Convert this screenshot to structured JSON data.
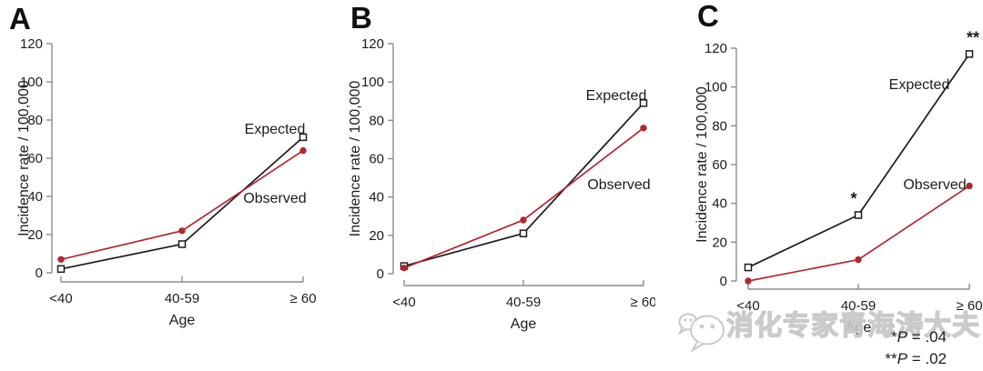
{
  "panels": [
    {
      "letter": "A"
    },
    {
      "letter": "B"
    },
    {
      "letter": "C"
    }
  ],
  "chart_data": [
    {
      "type": "line",
      "panel": "A",
      "categories": [
        "<40",
        "40-59",
        "≥ 60"
      ],
      "series": [
        {
          "name": "Expected",
          "marker": "square-open",
          "color": "#1c1c1c",
          "values": [
            2,
            15,
            71
          ]
        },
        {
          "name": "Observed",
          "marker": "circle-filled",
          "color": "#b3282c",
          "values": [
            7,
            22,
            64
          ]
        }
      ],
      "xlabel": "Age",
      "ylabel": "Incidence rate / 100,000",
      "ylim": [
        0,
        120
      ],
      "yticks": [
        0,
        20,
        40,
        60,
        80,
        100,
        120
      ],
      "grid": false,
      "legend_position": "inline-labels"
    },
    {
      "type": "line",
      "panel": "B",
      "categories": [
        "<40",
        "40-59",
        "≥ 60"
      ],
      "series": [
        {
          "name": "Expected",
          "marker": "square-open",
          "color": "#1c1c1c",
          "values": [
            4,
            21,
            89
          ]
        },
        {
          "name": "Observed",
          "marker": "circle-filled",
          "color": "#b3282c",
          "values": [
            3,
            28,
            76
          ]
        }
      ],
      "xlabel": "Age",
      "ylabel": "Incidence rate / 100,000",
      "ylim": [
        0,
        120
      ],
      "yticks": [
        0,
        20,
        40,
        60,
        80,
        100,
        120
      ],
      "grid": false,
      "legend_position": "inline-labels"
    },
    {
      "type": "line",
      "panel": "C",
      "categories": [
        "<40",
        "40-59",
        "≥ 60"
      ],
      "series": [
        {
          "name": "Expected",
          "marker": "square-open",
          "color": "#1c1c1c",
          "values": [
            7,
            34,
            117
          ],
          "annotations": [
            {
              "text": "*",
              "point_index": 1
            },
            {
              "text": "**",
              "point_index": 2
            }
          ]
        },
        {
          "name": "Observed",
          "marker": "circle-filled",
          "color": "#b3282c",
          "values": [
            0,
            11,
            49
          ]
        }
      ],
      "xlabel": "Age",
      "ylabel": "Incidence rate / 100,000",
      "ylim": [
        0,
        120
      ],
      "yticks": [
        0,
        20,
        40,
        60,
        80,
        100,
        120
      ],
      "grid": false,
      "legend_position": "inline-labels"
    }
  ],
  "footnotes": [
    {
      "marker": "*",
      "p": "P",
      "value": " = .04"
    },
    {
      "marker": "**",
      "p": "P",
      "value": " = .02"
    }
  ],
  "watermark": {
    "icon": "wechat-icon",
    "text": "消化专家青海涛大夫"
  },
  "colors": {
    "expected": "#1c1c1c",
    "observed": "#b3282c",
    "axis": "#8c8c8c",
    "text": "#1c1c1c",
    "watermark": "#c9c9c9"
  }
}
